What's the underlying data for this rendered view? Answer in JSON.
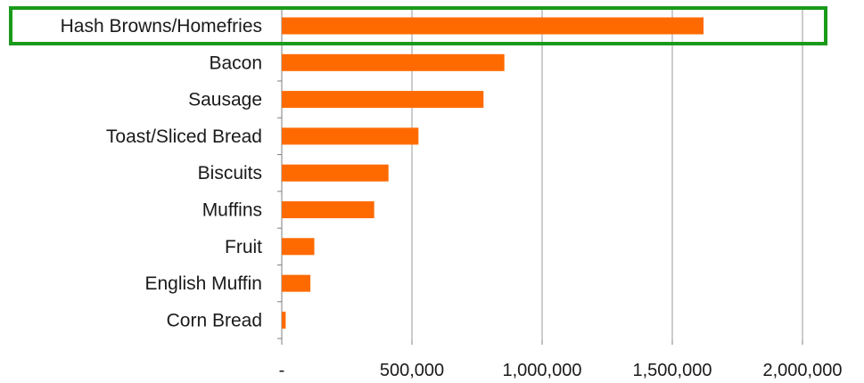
{
  "chart_data": {
    "type": "bar",
    "orientation": "horizontal",
    "categories": [
      "Hash Browns/Homefries",
      "Bacon",
      "Sausage",
      "Toast/Sliced Bread",
      "Biscuits",
      "Muffins",
      "Fruit",
      "English Muffin",
      "Corn Bread"
    ],
    "values": [
      1620000,
      855000,
      775000,
      525000,
      410000,
      355000,
      125000,
      110000,
      15000
    ],
    "xlim": [
      0,
      2000000
    ],
    "xticks": [
      0,
      500000,
      1000000,
      1500000,
      2000000
    ],
    "xtick_labels": [
      "-",
      "500,000",
      "1,000,000",
      "1,500,000",
      "2,000,000"
    ],
    "grid": true,
    "bar_color": "#ff6a00",
    "highlight": {
      "category": "Hash Browns/Homefries",
      "color": "#1a9a1a"
    }
  }
}
